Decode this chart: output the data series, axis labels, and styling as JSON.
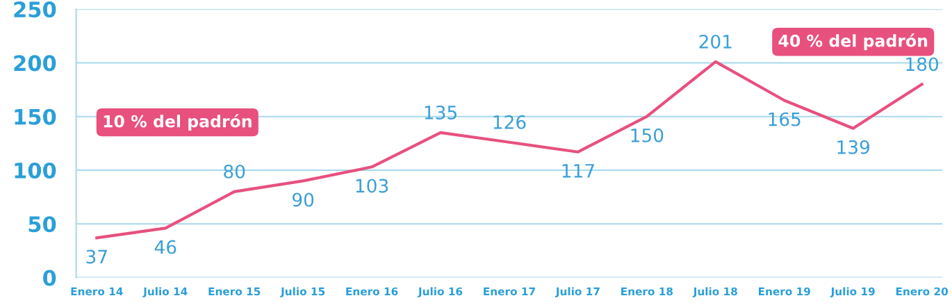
{
  "chart_data": {
    "type": "line",
    "categories": [
      "Enero 14",
      "Julio 14",
      "Enero 15",
      "Julio 15",
      "Enero 16",
      "Julio 16",
      "Enero 17",
      "Julio 17",
      "Enero 18",
      "Julio 18",
      "Enero 19",
      "Julio 19",
      "Enero 20"
    ],
    "series": [
      {
        "color": "#e8507e",
        "values": [
          37,
          46,
          80,
          90,
          103,
          135,
          126,
          117,
          150,
          201,
          165,
          139,
          180
        ]
      }
    ],
    "ylim": [
      0,
      250
    ],
    "yticks": [
      0,
      50,
      100,
      150,
      200,
      250
    ],
    "grid": "y",
    "data_labels": true,
    "legend": false,
    "marker": "none",
    "line_style": "solid",
    "annotations": [
      "10 % del padrón",
      "40 % del padrón"
    ]
  }
}
